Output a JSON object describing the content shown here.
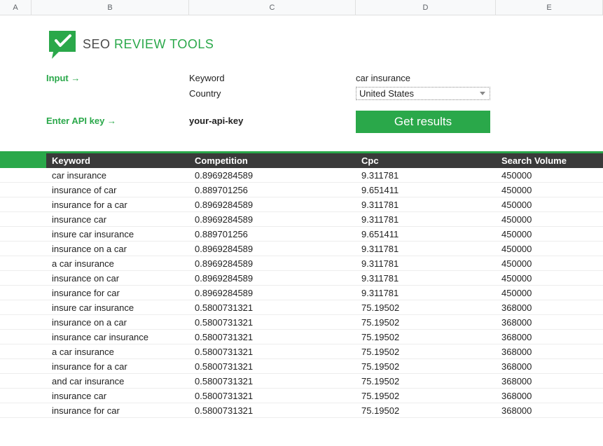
{
  "colors": {
    "brand_green": "#2aa84a",
    "header_bg": "#3a3a3a",
    "header_text": "#ffffff",
    "grid_line": "#e0e0e0",
    "col_header_bg": "#f8f9fa",
    "col_header_text": "#5f6368"
  },
  "column_letters": [
    "A",
    "B",
    "C",
    "D",
    "E"
  ],
  "logo": {
    "seo": "SEO",
    "review_tools": "REVIEW TOOLS"
  },
  "form": {
    "input_label": "Input →",
    "keyword_label": "Keyword",
    "keyword_value": "car insurance",
    "country_label": "Country",
    "country_value": "United States",
    "api_label": "Enter API key →",
    "api_value_label": "your-api-key",
    "button_label": "Get results"
  },
  "table": {
    "headers": {
      "keyword": "Keyword",
      "competition": "Competition",
      "cpc": "Cpc",
      "search_volume": "Search Volume"
    },
    "rows": [
      {
        "keyword": "car insurance",
        "competition": "0.8969284589",
        "cpc": "9.311781",
        "search_volume": "450000"
      },
      {
        "keyword": "insurance of car",
        "competition": "0.889701256",
        "cpc": "9.651411",
        "search_volume": "450000"
      },
      {
        "keyword": "insurance for a car",
        "competition": "0.8969284589",
        "cpc": "9.311781",
        "search_volume": "450000"
      },
      {
        "keyword": "insurance car",
        "competition": "0.8969284589",
        "cpc": "9.311781",
        "search_volume": "450000"
      },
      {
        "keyword": "insure car insurance",
        "competition": "0.889701256",
        "cpc": "9.651411",
        "search_volume": "450000"
      },
      {
        "keyword": "insurance on a car",
        "competition": "0.8969284589",
        "cpc": "9.311781",
        "search_volume": "450000"
      },
      {
        "keyword": "a car insurance",
        "competition": "0.8969284589",
        "cpc": "9.311781",
        "search_volume": "450000"
      },
      {
        "keyword": "insurance on car",
        "competition": "0.8969284589",
        "cpc": "9.311781",
        "search_volume": "450000"
      },
      {
        "keyword": "insurance for car",
        "competition": "0.8969284589",
        "cpc": "9.311781",
        "search_volume": "450000"
      },
      {
        "keyword": "insure car insurance",
        "competition": "0.5800731321",
        "cpc": "75.19502",
        "search_volume": "368000"
      },
      {
        "keyword": "insurance on a car",
        "competition": "0.5800731321",
        "cpc": "75.19502",
        "search_volume": "368000"
      },
      {
        "keyword": "insurance car insurance",
        "competition": "0.5800731321",
        "cpc": "75.19502",
        "search_volume": "368000"
      },
      {
        "keyword": "a car insurance",
        "competition": "0.5800731321",
        "cpc": "75.19502",
        "search_volume": "368000"
      },
      {
        "keyword": "insurance for a car",
        "competition": "0.5800731321",
        "cpc": "75.19502",
        "search_volume": "368000"
      },
      {
        "keyword": "and car insurance",
        "competition": "0.5800731321",
        "cpc": "75.19502",
        "search_volume": "368000"
      },
      {
        "keyword": "insurance car",
        "competition": "0.5800731321",
        "cpc": "75.19502",
        "search_volume": "368000"
      },
      {
        "keyword": "insurance for car",
        "competition": "0.5800731321",
        "cpc": "75.19502",
        "search_volume": "368000"
      }
    ]
  }
}
